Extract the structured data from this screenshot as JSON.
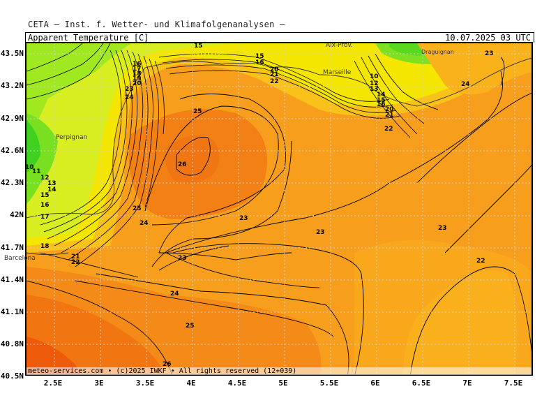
{
  "header": {
    "organization": "CETA — Inst. f. Wetter- und Klimafolgenanalysen —",
    "product": "Apparent Temperature [C]",
    "valid_time": "10.07.2025 03 UTC"
  },
  "footer": "meteo-services.com • (c)2025 IWKF • All rights reserved (12+039)",
  "axes": {
    "lat_labels": [
      "43.5N",
      "43.2N",
      "42.9N",
      "42.6N",
      "42.3N",
      "42N",
      "41.7N",
      "41.4N",
      "41.1N",
      "40.8N",
      "40.5N"
    ],
    "lon_labels": [
      "2.5E",
      "3E",
      "3.5E",
      "4E",
      "4.5E",
      "5E",
      "5.5E",
      "6E",
      "6.5E",
      "7E",
      "7.5E"
    ]
  },
  "cities": [
    "Aix-Prov.",
    "Draguignan",
    "Marseille",
    "Perpignan",
    "Barcelona"
  ],
  "contour_labels": [
    "15",
    "15",
    "16",
    "17",
    "18",
    "19",
    "20",
    "21",
    "22",
    "23",
    "24",
    "25",
    "26",
    "25",
    "24",
    "23",
    "22",
    "21",
    "20",
    "19",
    "18",
    "17",
    "16",
    "15",
    "14",
    "13",
    "12",
    "11",
    "10",
    "23",
    "23",
    "23",
    "23",
    "22",
    "24",
    "25",
    "26",
    "22",
    "21",
    "20",
    "16",
    "15",
    "14",
    "13",
    "12",
    "10",
    "22",
    "23",
    "24",
    "21",
    "22",
    "18",
    "17"
  ],
  "colors": {
    "green": "#60dd20",
    "yellow_green": "#c0ee20",
    "yellow": "#f5e600",
    "light_orange": "#f9b21a",
    "orange": "#f79f1c",
    "dark_orange": "#f17b12",
    "red_orange": "#ec5a0a"
  }
}
